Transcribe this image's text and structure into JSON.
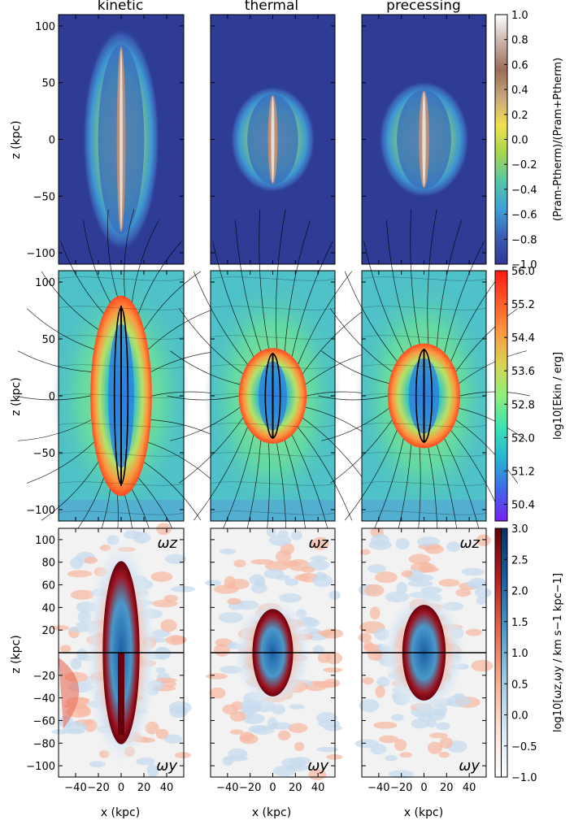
{
  "chart_data": {
    "type": "heatmap",
    "columns": [
      "kinetic",
      "thermal",
      "precessing"
    ],
    "xlabel": "x (kpc)",
    "ylabel": "z (kpc)",
    "xlim": [
      -55,
      55
    ],
    "x_ticks": [
      "−40",
      "−20",
      "0",
      "20",
      "40"
    ],
    "x_tick_values": [
      -40,
      -20,
      0,
      20,
      40
    ],
    "rows": [
      {
        "name": "pressure-ratio",
        "ylim": [
          -110,
          110
        ],
        "y_ticks": [
          "100",
          "50",
          "0",
          "−50",
          "−100"
        ],
        "y_tick_values": [
          100,
          50,
          0,
          -50,
          -100
        ],
        "colorbar": {
          "label": "(Pram-Ptherm)/(Pram+Ptherm)",
          "range": [
            -1.0,
            1.0
          ],
          "ticks": [
            "1.0",
            "0.8",
            "0.6",
            "0.4",
            "0.2",
            "0.0",
            "−0.2",
            "−0.4",
            "−0.6",
            "−0.8",
            "−1.0"
          ],
          "tick_values": [
            1.0,
            0.8,
            0.6,
            0.4,
            0.2,
            0.0,
            -0.2,
            -0.4,
            -0.6,
            -0.8,
            -1.0
          ],
          "colormap": [
            "#313695",
            "#3a5fb5",
            "#3fa1d8",
            "#54c7a6",
            "#a7d64d",
            "#f1e04f",
            "#c9a97c",
            "#9d6b57",
            "#c9b2a8",
            "#ffffff"
          ]
        },
        "background_color": "#2e3c96"
      },
      {
        "name": "kinetic-energy",
        "ylim": [
          -110,
          110
        ],
        "y_ticks": [
          "100",
          "50",
          "0",
          "−50",
          "−100"
        ],
        "y_tick_values": [
          100,
          50,
          0,
          -50,
          -100
        ],
        "colorbar": {
          "label": "log10[Ekin / erg]",
          "range": [
            50.0,
            56.0
          ],
          "ticks": [
            "56.0",
            "55.2",
            "54.4",
            "53.6",
            "52.8",
            "52.0",
            "51.2",
            "50.4"
          ],
          "tick_values": [
            56.0,
            55.2,
            54.4,
            53.6,
            52.8,
            52.0,
            51.2,
            50.4
          ],
          "colormap": [
            "#7a1fef",
            "#3d67e8",
            "#29b3d4",
            "#3be3b1",
            "#8ef07c",
            "#d9d455",
            "#fc9b42",
            "#ff5a2a",
            "#ff1a10"
          ]
        },
        "background_color": "#4fc1c8"
      },
      {
        "name": "vorticity",
        "ylim": [
          -110,
          110
        ],
        "y_ticks": [
          "100",
          "80",
          "60",
          "40",
          "20",
          "−20",
          "−40",
          "−60",
          "−80",
          "−100"
        ],
        "y_tick_values": [
          100,
          80,
          60,
          40,
          20,
          -20,
          -40,
          -60,
          -80,
          -100
        ],
        "panel_labels": {
          "upper": "ωz",
          "lower": "ωy"
        },
        "colorbar": {
          "label": "log10[ωz,ωy / km s−1 kpc−1]",
          "range": [
            -1.0,
            3.0
          ],
          "ticks": [
            "3.0",
            "2.5",
            "2.0",
            "1.5",
            "1.0",
            "0.5",
            "0.0",
            "−0.5",
            "−1.0"
          ],
          "tick_values": [
            3.0,
            2.5,
            2.0,
            1.5,
            1.0,
            0.5,
            0.0,
            -0.5,
            -1.0
          ],
          "colormap_red": [
            "#ffffff",
            "#fde0d2",
            "#f9a98b",
            "#e9604a",
            "#bb1a22",
            "#67000d"
          ],
          "colormap_blue": [
            "#ffffff",
            "#d7e6f4",
            "#9ecae1",
            "#4a98c9",
            "#1a5ea5",
            "#08306b"
          ]
        },
        "background_color": "#f2f2f2"
      }
    ],
    "structures": {
      "kinetic": {
        "half_width_kpc": 27,
        "half_height_kpc": 88
      },
      "thermal": {
        "half_width_kpc": 30,
        "half_height_kpc": 42
      },
      "precessing": {
        "half_width_kpc": 32,
        "half_height_kpc": 46
      }
    }
  }
}
